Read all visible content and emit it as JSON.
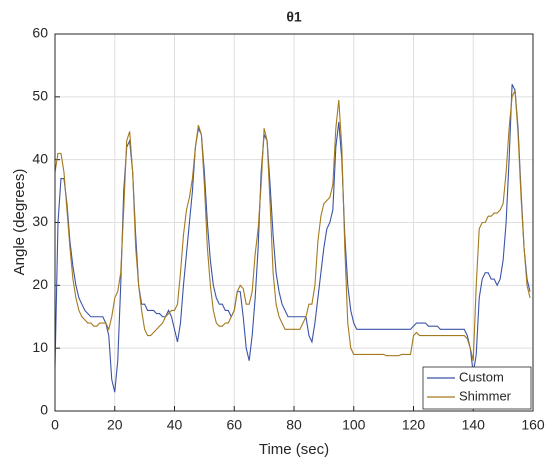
{
  "chart_data": {
    "type": "line",
    "title": "θ1",
    "xlabel": "Time (sec)",
    "ylabel": "Angle (degrees)",
    "x": [
      0,
      1,
      2,
      3,
      4,
      5,
      6,
      7,
      8,
      9,
      10,
      11,
      12,
      13,
      14,
      15,
      16,
      17,
      18,
      19,
      20,
      21,
      22,
      23,
      24,
      25,
      26,
      27,
      28,
      29,
      30,
      31,
      32,
      33,
      34,
      35,
      36,
      37,
      38,
      39,
      40,
      41,
      42,
      43,
      44,
      45,
      46,
      47,
      48,
      49,
      50,
      51,
      52,
      53,
      54,
      55,
      56,
      57,
      58,
      59,
      60,
      61,
      62,
      63,
      64,
      65,
      66,
      67,
      68,
      69,
      70,
      71,
      72,
      73,
      74,
      75,
      76,
      77,
      78,
      79,
      80,
      81,
      82,
      83,
      84,
      85,
      86,
      87,
      88,
      89,
      90,
      91,
      92,
      93,
      94,
      95,
      96,
      97,
      98,
      99,
      100,
      101,
      102,
      103,
      104,
      105,
      106,
      107,
      108,
      109,
      110,
      111,
      112,
      113,
      114,
      115,
      116,
      117,
      118,
      119,
      120,
      121,
      122,
      123,
      124,
      125,
      126,
      127,
      128,
      129,
      130,
      131,
      132,
      133,
      134,
      135,
      136,
      137,
      138,
      139,
      140,
      141,
      142,
      143,
      144,
      145,
      146,
      147,
      148,
      149,
      150,
      151,
      152,
      153,
      154,
      155,
      156,
      157,
      158,
      159
    ],
    "series": [
      {
        "name": "Custom",
        "color": "#3c53a8",
        "values": [
          7,
          30,
          37,
          37,
          33,
          27,
          23,
          20,
          18,
          17,
          16,
          15.5,
          15,
          15,
          15,
          15,
          15,
          14,
          12,
          5,
          3,
          8,
          20,
          35,
          42,
          43,
          38,
          28,
          20,
          17,
          17,
          16,
          16,
          16,
          15.5,
          15.5,
          15,
          15,
          16,
          15,
          13,
          11,
          14,
          20,
          25,
          30,
          35,
          42,
          45,
          44,
          38,
          30,
          24,
          20,
          18,
          17,
          17,
          16,
          16,
          15,
          16,
          19,
          19,
          15,
          10,
          8,
          12,
          18,
          26,
          38,
          44,
          43,
          36,
          28,
          22,
          19,
          17,
          16,
          15,
          15,
          15,
          15,
          15,
          15,
          15,
          12,
          11,
          14,
          18,
          22,
          26,
          29,
          30,
          32,
          42,
          46,
          40,
          28,
          20,
          16,
          14,
          13,
          13,
          13,
          13,
          13,
          13,
          13,
          13,
          13,
          13,
          13,
          13,
          13,
          13,
          13,
          13,
          13,
          13,
          13,
          13.5,
          14,
          14,
          14,
          14,
          13.5,
          13.5,
          13.5,
          13.5,
          13,
          13,
          13,
          13,
          13,
          13,
          13,
          13,
          13,
          12,
          10,
          6,
          9,
          18,
          21,
          22,
          22,
          21,
          21,
          20,
          21,
          24,
          30,
          40,
          52,
          51,
          45,
          35,
          26,
          21,
          19
        ]
      },
      {
        "name": "Shimmer",
        "color": "#a47a1e",
        "values": [
          38,
          41,
          41,
          38,
          32,
          26,
          21,
          18,
          16,
          15,
          14.5,
          14,
          14,
          13.5,
          13.5,
          14,
          14,
          14,
          13,
          15,
          18,
          19,
          22,
          32,
          43,
          44.5,
          38,
          26,
          20,
          16,
          13,
          12,
          12,
          12.5,
          13,
          13.5,
          14,
          15,
          15.5,
          16,
          16,
          17,
          22,
          28,
          32,
          34,
          37,
          42,
          45.5,
          44,
          36,
          26,
          20,
          16,
          14,
          13.5,
          13.5,
          14,
          14,
          15,
          16,
          19,
          20,
          19.5,
          17,
          17,
          19,
          25,
          29,
          36,
          45,
          43,
          33,
          22,
          17,
          15,
          14,
          13,
          13,
          13,
          13,
          13,
          13,
          14,
          15,
          17,
          17,
          20,
          27,
          31,
          33,
          33.5,
          34,
          36,
          45,
          49.5,
          42,
          26,
          14,
          10,
          9,
          9,
          9,
          9,
          9,
          9,
          9,
          9,
          9,
          9,
          9,
          8.8,
          8.8,
          8.8,
          8.8,
          8.8,
          9,
          9,
          9,
          9,
          12,
          12.5,
          12,
          12,
          12,
          12,
          12,
          12,
          12,
          12,
          12,
          12,
          12,
          12,
          12,
          12,
          12,
          12,
          11.5,
          10,
          8,
          20,
          29,
          30,
          30,
          31,
          31,
          31.5,
          31.5,
          32,
          33,
          38,
          45,
          50,
          51,
          44,
          34,
          26,
          20,
          18
        ]
      }
    ],
    "xlim": [
      0,
      160
    ],
    "xticks": [
      0,
      20,
      40,
      60,
      80,
      100,
      120,
      140,
      160
    ],
    "ylim": [
      0,
      60
    ],
    "yticks": [
      0,
      10,
      20,
      30,
      40,
      50,
      60
    ],
    "grid": true,
    "legend": "southeast"
  }
}
